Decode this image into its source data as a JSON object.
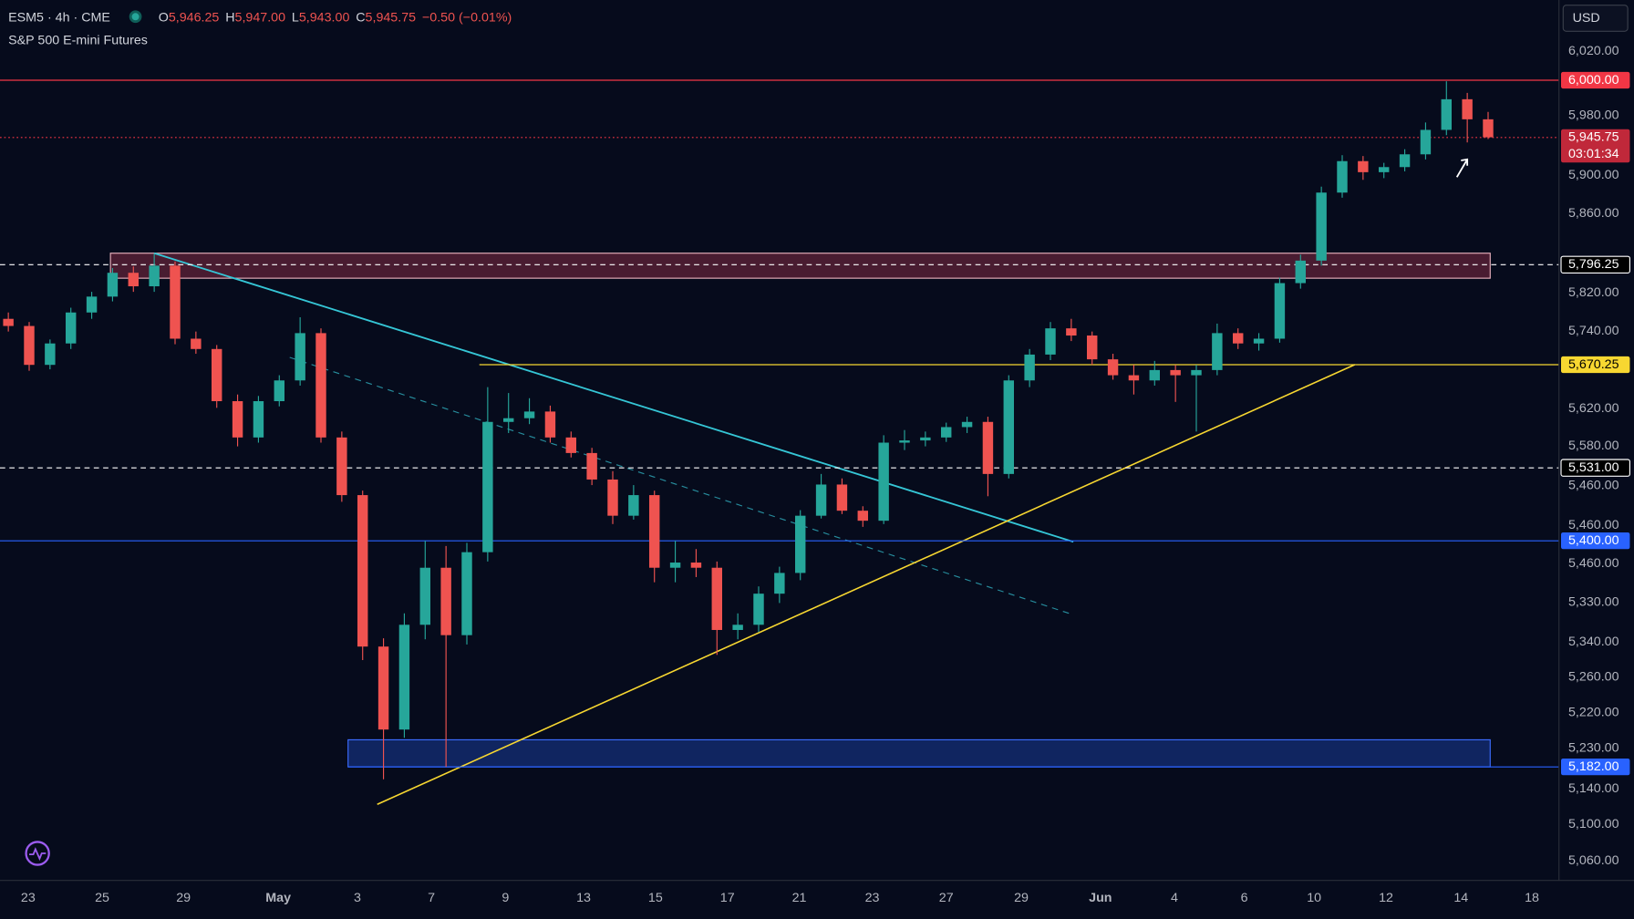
{
  "chart_data": {
    "type": "candlestick",
    "symbol": "ESM5 · 4h · CME",
    "subtitle": "S&P 500 E-mini Futures",
    "ohlc": [
      {
        "key": "O",
        "value": "5,946.25"
      },
      {
        "key": "H",
        "value": "5,947.00"
      },
      {
        "key": "L",
        "value": "5,943.00"
      },
      {
        "key": "C",
        "value": "5,945.75"
      }
    ],
    "change": "−0.50 (−0.01%)",
    "currency": "USD",
    "countdown": "03:01:34",
    "up_color": "#26a69a",
    "down_color": "#ef5350",
    "levels": [
      {
        "value": 6000,
        "label": "6,000.00",
        "color": "#f23645",
        "style": "solid"
      },
      {
        "value": 5945.75,
        "label": "5,945.75",
        "color": "#c0283a",
        "style": "dotted"
      },
      {
        "value": 5796.25,
        "label": "5,796.25",
        "color": "#ffffff",
        "style": "dashed"
      },
      {
        "value": 5670.25,
        "label": "5,670.25",
        "color": "#f7d731",
        "style": "solid"
      },
      {
        "value": 5531,
        "label": "5,531.00",
        "color": "#ffffff",
        "style": "dashed"
      },
      {
        "value": 5400,
        "label": "5,400.00",
        "color": "#2962ff",
        "style": "solid"
      },
      {
        "value": 5182,
        "label": "5,182.00",
        "color": "#2962ff",
        "style": "solid"
      }
    ],
    "price_axis_labels": [
      "6,020.00",
      "5,980.00",
      "5,900.00",
      "5,860.00",
      "5,820.00",
      "5,740.00",
      "5,620.00",
      "5,580.00",
      "5,460.00",
      "5,460.00",
      "5,460.00",
      "5,330.00",
      "5,340.00",
      "5,260.00",
      "5,220.00",
      "5,230.00",
      "5,140.00",
      "5,100.00",
      "5,060.00"
    ],
    "time_axis_labels": [
      "23",
      "25",
      "29",
      "May",
      "3",
      "7",
      "9",
      "13",
      "15",
      "17",
      "21",
      "23",
      "27",
      "29",
      "Jun",
      "4",
      "6",
      "10",
      "12",
      "14",
      "18"
    ],
    "candles": [
      [
        5728,
        5736,
        5712,
        5719
      ],
      [
        5719,
        5724,
        5662,
        5670
      ],
      [
        5670,
        5702,
        5664,
        5697
      ],
      [
        5697,
        5742,
        5690,
        5736
      ],
      [
        5736,
        5762,
        5728,
        5756
      ],
      [
        5756,
        5792,
        5750,
        5786
      ],
      [
        5786,
        5794,
        5762,
        5769
      ],
      [
        5769,
        5809,
        5762,
        5795
      ],
      [
        5795,
        5800,
        5696,
        5703
      ],
      [
        5703,
        5712,
        5684,
        5690
      ],
      [
        5690,
        5695,
        5612,
        5621
      ],
      [
        5621,
        5630,
        5560,
        5572
      ],
      [
        5572,
        5628,
        5565,
        5621
      ],
      [
        5621,
        5656,
        5614,
        5649
      ],
      [
        5649,
        5730,
        5642,
        5710
      ],
      [
        5710,
        5716,
        5565,
        5572
      ],
      [
        5572,
        5580,
        5470,
        5482
      ],
      [
        5482,
        5490,
        5285,
        5298
      ],
      [
        5298,
        5306,
        5170,
        5218
      ],
      [
        5218,
        5330,
        5210,
        5319
      ],
      [
        5319,
        5400,
        5305,
        5374
      ],
      [
        5374,
        5395,
        5182,
        5309
      ],
      [
        5309,
        5398,
        5300,
        5389
      ],
      [
        5389,
        5640,
        5380,
        5593
      ],
      [
        5593,
        5632,
        5578,
        5598
      ],
      [
        5598,
        5625,
        5590,
        5607
      ],
      [
        5607,
        5615,
        5565,
        5572
      ],
      [
        5572,
        5580,
        5545,
        5551
      ],
      [
        5551,
        5558,
        5500,
        5510
      ],
      [
        5510,
        5525,
        5430,
        5445
      ],
      [
        5445,
        5500,
        5438,
        5482
      ],
      [
        5482,
        5490,
        5360,
        5374
      ],
      [
        5374,
        5400,
        5360,
        5379
      ],
      [
        5379,
        5392,
        5365,
        5374
      ],
      [
        5374,
        5380,
        5290,
        5314
      ],
      [
        5314,
        5330,
        5305,
        5319
      ],
      [
        5319,
        5356,
        5312,
        5349
      ],
      [
        5349,
        5375,
        5340,
        5369
      ],
      [
        5369,
        5455,
        5362,
        5445
      ],
      [
        5445,
        5520,
        5440,
        5501
      ],
      [
        5501,
        5512,
        5448,
        5454
      ],
      [
        5454,
        5462,
        5425,
        5436
      ],
      [
        5436,
        5575,
        5430,
        5565
      ],
      [
        5565,
        5582,
        5555,
        5568
      ],
      [
        5568,
        5580,
        5560,
        5572
      ],
      [
        5572,
        5592,
        5566,
        5586
      ],
      [
        5586,
        5600,
        5578,
        5593
      ],
      [
        5593,
        5600,
        5480,
        5520
      ],
      [
        5520,
        5656,
        5512,
        5649
      ],
      [
        5649,
        5690,
        5640,
        5683
      ],
      [
        5683,
        5724,
        5676,
        5716
      ],
      [
        5716,
        5728,
        5700,
        5707
      ],
      [
        5707,
        5712,
        5670,
        5677
      ],
      [
        5677,
        5684,
        5650,
        5656
      ],
      [
        5656,
        5670,
        5630,
        5649
      ],
      [
        5649,
        5675,
        5642,
        5663
      ],
      [
        5663,
        5670,
        5620,
        5656
      ],
      [
        5656,
        5670,
        5580,
        5663
      ],
      [
        5663,
        5722,
        5656,
        5710
      ],
      [
        5710,
        5716,
        5690,
        5697
      ],
      [
        5697,
        5710,
        5688,
        5703
      ],
      [
        5703,
        5780,
        5698,
        5773
      ],
      [
        5773,
        5808,
        5766,
        5801
      ],
      [
        5801,
        5888,
        5795,
        5881
      ],
      [
        5881,
        5925,
        5875,
        5918
      ],
      [
        5918,
        5924,
        5896,
        5905
      ],
      [
        5905,
        5916,
        5898,
        5911
      ],
      [
        5911,
        5932,
        5906,
        5926
      ],
      [
        5926,
        5960,
        5920,
        5953
      ],
      [
        5953,
        5999,
        5948,
        5982
      ],
      [
        5982,
        5988,
        5940,
        5963
      ],
      [
        5963,
        5970,
        5944,
        5946
      ]
    ]
  }
}
